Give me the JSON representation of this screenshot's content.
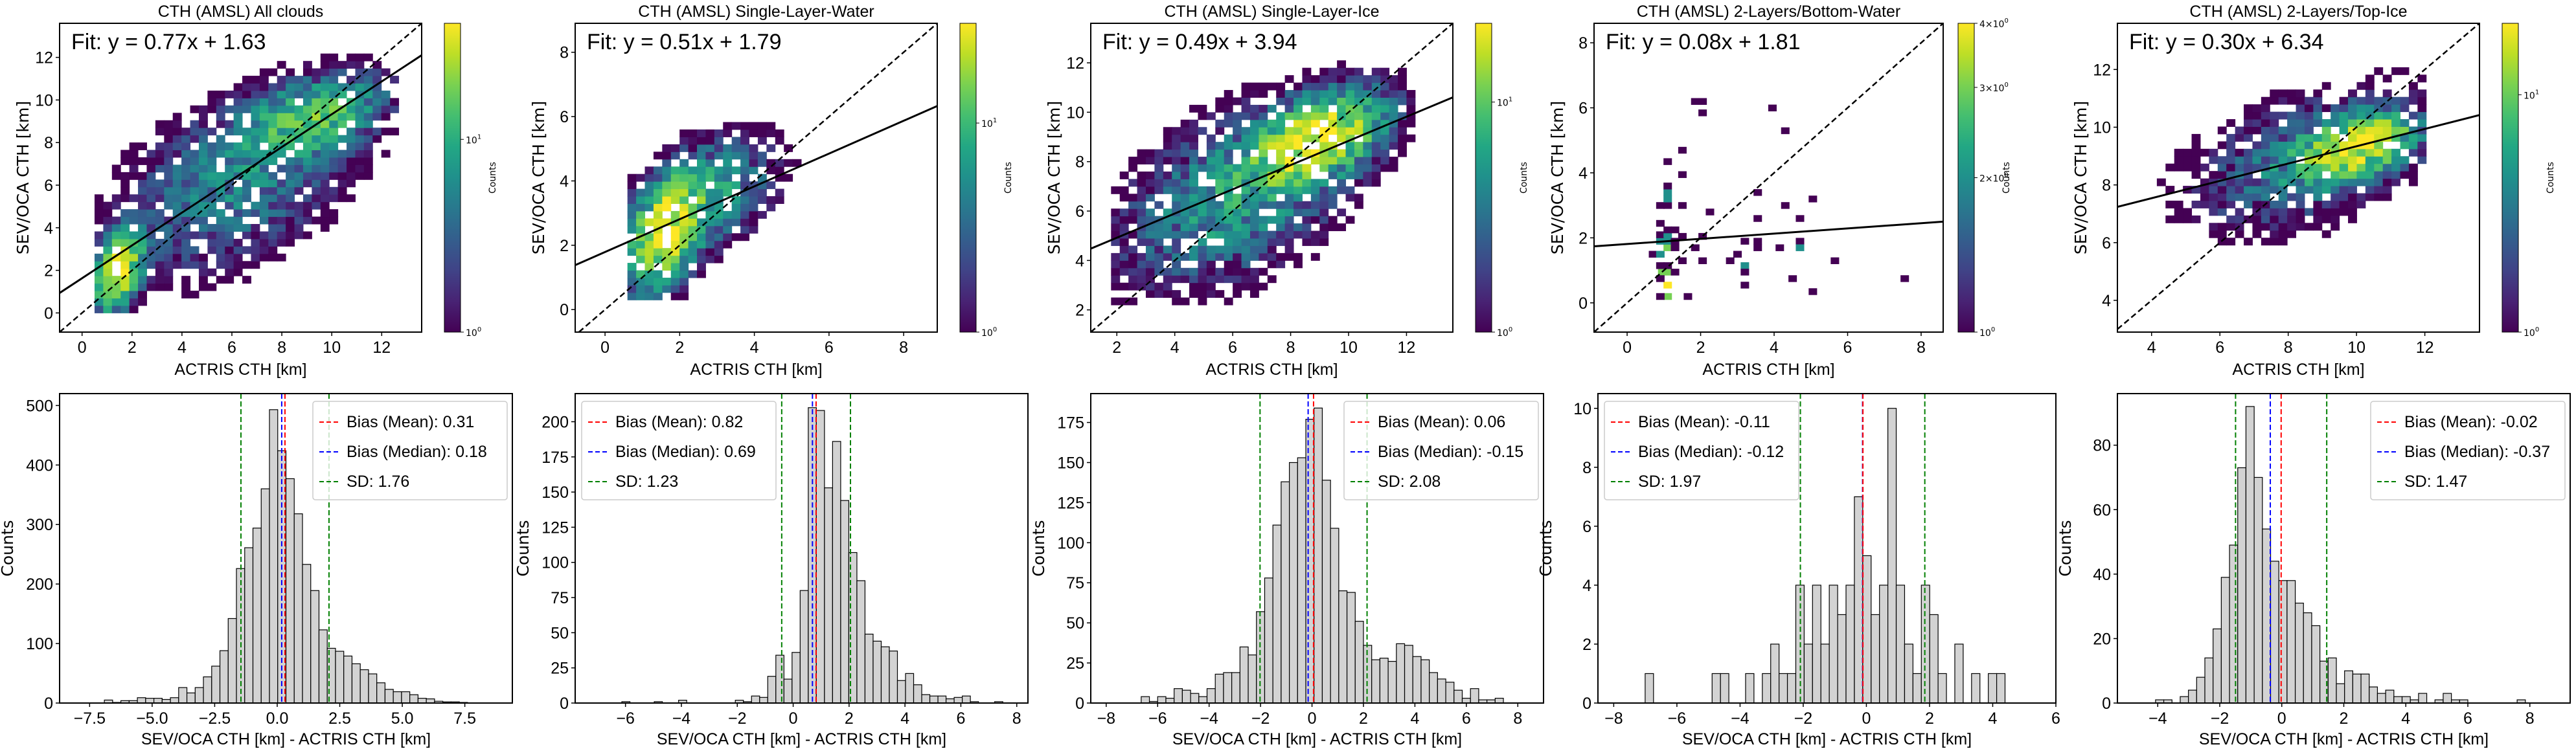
{
  "figure": {
    "scatter_xlabel": "ACTRIS CTH [km]",
    "scatter_ylabel": "SEV/OCA CTH [km]",
    "hist_xlabel": "SEV/OCA CTH [km] - ACTRIS CTH [km]",
    "hist_ylabel": "Counts",
    "colorbar_label": "Counts",
    "legend_labels": {
      "mean": "Bias (Mean)",
      "median": "Bias (Median)",
      "sd": "SD"
    },
    "colors": {
      "mean": "#ff0000",
      "median": "#0000ff",
      "sd": "#008000",
      "bar_fill": "#d3d3d3",
      "bar_edge": "#000000",
      "fit_line": "#000000",
      "one_to_one": "#000000"
    }
  },
  "chart_data": [
    {
      "type": "heatmap",
      "title": "CTH (AMSL) All clouds",
      "xlabel": "ACTRIS CTH [km]",
      "ylabel": "SEV/OCA CTH [km]",
      "xlim": [
        -0.9,
        13.6
      ],
      "ylim": [
        -0.9,
        13.6
      ],
      "xticks": [
        0,
        2,
        4,
        6,
        8,
        10,
        12
      ],
      "yticks": [
        0,
        2,
        4,
        6,
        8,
        10,
        12
      ],
      "fit": {
        "slope": 0.77,
        "intercept": 1.63,
        "label": "Fit: y = 0.77x + 1.63"
      },
      "one_to_one": true,
      "colorbar": {
        "scale": "log",
        "min": 1,
        "max": 40,
        "ticks": [
          "10^0",
          "10^1"
        ],
        "label": "Counts"
      },
      "density_clusters": [
        {
          "x": 1.3,
          "y": 1.8,
          "sx": 0.5,
          "sy": 1.0,
          "peak": 35
        },
        {
          "x": 9.0,
          "y": 9.0,
          "sx": 1.5,
          "sy": 1.0,
          "peak": 15
        },
        {
          "x": 6.0,
          "y": 6.0,
          "sx": 2.5,
          "sy": 2.2,
          "peak": 6
        }
      ],
      "x_extent": [
        0.5,
        12.5
      ],
      "y_extent": [
        0,
        12.7
      ]
    },
    {
      "type": "heatmap",
      "title": "CTH (AMSL) Single-Layer-Water",
      "xlabel": "ACTRIS CTH [km]",
      "ylabel": "SEV/OCA CTH [km]",
      "xlim": [
        -0.8,
        8.9
      ],
      "ylim": [
        -0.7,
        8.9
      ],
      "xticks": [
        0,
        2,
        4,
        6,
        8
      ],
      "yticks": [
        0,
        2,
        4,
        6,
        8
      ],
      "fit": {
        "slope": 0.51,
        "intercept": 1.79,
        "label": "Fit: y = 0.51x + 1.79"
      },
      "one_to_one": true,
      "colorbar": {
        "scale": "log",
        "min": 1,
        "max": 30,
        "ticks": [
          "10^0",
          "10^1"
        ],
        "label": "Counts"
      },
      "density_clusters": [
        {
          "x": 1.5,
          "y": 2.3,
          "sx": 0.5,
          "sy": 0.9,
          "peak": 28
        },
        {
          "x": 2.5,
          "y": 3.3,
          "sx": 1.0,
          "sy": 1.0,
          "peak": 8
        }
      ],
      "x_extent": [
        0.6,
        7.9
      ],
      "y_extent": [
        0.3,
        7.9
      ]
    },
    {
      "type": "heatmap",
      "title": "CTH (AMSL) Single-Layer-Ice",
      "xlabel": "ACTRIS CTH [km]",
      "ylabel": "SEV/OCA CTH [km]",
      "xlim": [
        1.1,
        13.6
      ],
      "ylim": [
        1.1,
        13.6
      ],
      "xticks": [
        2,
        4,
        6,
        8,
        10,
        12
      ],
      "yticks": [
        2,
        4,
        6,
        8,
        10,
        12
      ],
      "fit": {
        "slope": 0.49,
        "intercept": 3.94,
        "label": "Fit: y = 0.49x + 3.94"
      },
      "one_to_one": true,
      "colorbar": {
        "scale": "log",
        "min": 1,
        "max": 22,
        "ticks": [
          "10^0",
          "10^1"
        ],
        "label": "Counts"
      },
      "density_clusters": [
        {
          "x": 8.8,
          "y": 8.8,
          "sx": 1.2,
          "sy": 1.0,
          "peak": 20
        },
        {
          "x": 6.0,
          "y": 6.5,
          "sx": 2.2,
          "sy": 2.0,
          "peak": 6
        }
      ],
      "x_extent": [
        1.8,
        12.3
      ],
      "y_extent": [
        2.2,
        12.7
      ]
    },
    {
      "type": "heatmap",
      "title": "CTH (AMSL) 2-Layers/Bottom-Water",
      "xlabel": "ACTRIS CTH [km]",
      "ylabel": "SEV/OCA CTH [km]",
      "xlim": [
        -0.9,
        8.6
      ],
      "ylim": [
        -0.9,
        8.6
      ],
      "xticks": [
        0,
        2,
        4,
        6,
        8
      ],
      "yticks": [
        0,
        2,
        4,
        6,
        8
      ],
      "fit": {
        "slope": 0.08,
        "intercept": 1.81,
        "label": "Fit: y = 0.08x + 1.81"
      },
      "one_to_one": true,
      "colorbar": {
        "scale": "log",
        "min": 1,
        "max": 4,
        "ticks": [
          "10^0",
          "2×10^0",
          "3×10^0",
          "4×10^0"
        ],
        "label": "Counts"
      },
      "points": [
        [
          1.1,
          0.55,
          4
        ],
        [
          1.1,
          0.2,
          3
        ],
        [
          0.9,
          0.2,
          1
        ],
        [
          1.65,
          0.2,
          1
        ],
        [
          0.95,
          0.95,
          3
        ],
        [
          1.15,
          0.95,
          3
        ],
        [
          1.3,
          0.95,
          1
        ],
        [
          0.9,
          0.75,
          1
        ],
        [
          0.9,
          1.15,
          1
        ],
        [
          1.1,
          1.15,
          1
        ],
        [
          0.7,
          1.5,
          1
        ],
        [
          0.9,
          1.5,
          2
        ],
        [
          1.1,
          1.7,
          3
        ],
        [
          1.3,
          1.7,
          1
        ],
        [
          0.9,
          1.9,
          2
        ],
        [
          1.1,
          1.9,
          2
        ],
        [
          1.3,
          1.9,
          1
        ],
        [
          0.9,
          2.1,
          1
        ],
        [
          1.1,
          2.1,
          2
        ],
        [
          1.1,
          2.25,
          1
        ],
        [
          1.3,
          2.25,
          1
        ],
        [
          1.5,
          2.05,
          1
        ],
        [
          0.9,
          2.45,
          1
        ],
        [
          0.9,
          3.0,
          1
        ],
        [
          1.1,
          3.0,
          1
        ],
        [
          1.5,
          3.0,
          1
        ],
        [
          1.1,
          3.2,
          2
        ],
        [
          1.1,
          3.4,
          2
        ],
        [
          1.1,
          3.6,
          1
        ],
        [
          1.5,
          3.95,
          1
        ],
        [
          1.1,
          4.35,
          1
        ],
        [
          1.5,
          4.7,
          1
        ],
        [
          1.85,
          6.2,
          1
        ],
        [
          2.05,
          6.2,
          1
        ],
        [
          2.05,
          5.85,
          1
        ],
        [
          3.95,
          6.0,
          1
        ],
        [
          4.3,
          5.3,
          1
        ],
        [
          1.85,
          1.7,
          1
        ],
        [
          2.05,
          2.05,
          1
        ],
        [
          2.25,
          2.8,
          1
        ],
        [
          2.05,
          1.3,
          1
        ],
        [
          1.5,
          1.3,
          1
        ],
        [
          2.8,
          1.3,
          1
        ],
        [
          3.0,
          1.5,
          1
        ],
        [
          3.2,
          1.9,
          1
        ],
        [
          3.2,
          1.15,
          2
        ],
        [
          3.2,
          0.95,
          1
        ],
        [
          3.2,
          0.55,
          1
        ],
        [
          3.55,
          1.9,
          1
        ],
        [
          3.55,
          1.7,
          1
        ],
        [
          3.55,
          2.6,
          1
        ],
        [
          3.55,
          3.4,
          1
        ],
        [
          4.15,
          1.7,
          1
        ],
        [
          4.3,
          3.0,
          1
        ],
        [
          4.5,
          0.75,
          1
        ],
        [
          4.7,
          1.9,
          1
        ],
        [
          4.7,
          1.7,
          2
        ],
        [
          4.7,
          2.6,
          1
        ],
        [
          5.05,
          3.2,
          1
        ],
        [
          5.05,
          0.35,
          1
        ],
        [
          5.65,
          1.3,
          1
        ],
        [
          7.55,
          0.75,
          1
        ]
      ]
    },
    {
      "type": "heatmap",
      "title": "CTH (AMSL) 2-Layers/Top-Ice",
      "xlabel": "ACTRIS CTH [km]",
      "ylabel": "SEV/OCA CTH [km]",
      "xlim": [
        3.0,
        13.6
      ],
      "ylim": [
        2.9,
        13.6
      ],
      "xticks": [
        4,
        6,
        8,
        10,
        12
      ],
      "yticks": [
        4,
        6,
        8,
        10,
        12
      ],
      "fit": {
        "slope": 0.3,
        "intercept": 6.34,
        "label": "Fit: y = 0.30x + 6.34"
      },
      "one_to_one": true,
      "colorbar": {
        "scale": "log",
        "min": 1,
        "max": 20,
        "ticks": [
          "10^0",
          "10^1"
        ],
        "label": "Counts"
      },
      "density_clusters": [
        {
          "x": 9.9,
          "y": 9.2,
          "sx": 0.9,
          "sy": 0.6,
          "peak": 18
        },
        {
          "x": 8.5,
          "y": 8.8,
          "sx": 2.0,
          "sy": 1.4,
          "peak": 4
        }
      ],
      "x_extent": [
        3.9,
        11.9
      ],
      "y_extent": [
        5.4,
        12.7
      ]
    },
    {
      "type": "bar",
      "subtype": "histogram",
      "xlabel": "SEV/OCA CTH [km] - ACTRIS CTH [km]",
      "ylabel": "Counts",
      "xlim": [
        -8.7,
        9.4
      ],
      "ylim": [
        0,
        520
      ],
      "xticks": [
        -7.5,
        -5.0,
        -2.5,
        0.0,
        2.5,
        5.0,
        7.5
      ],
      "xtick_labels": [
        "−7.5",
        "−5.0",
        "−2.5",
        "0.0",
        "2.5",
        "5.0",
        "7.5"
      ],
      "yticks": [
        0,
        100,
        200,
        300,
        400,
        500
      ],
      "bin_start": -7.9,
      "bin_width": 0.33,
      "values": [
        0,
        0,
        0,
        5,
        1,
        4,
        4,
        9,
        8,
        8,
        6,
        9,
        26,
        17,
        26,
        44,
        62,
        88,
        142,
        226,
        261,
        294,
        360,
        493,
        424,
        377,
        318,
        233,
        189,
        123,
        92,
        87,
        79,
        66,
        56,
        49,
        34,
        23,
        19,
        19,
        14,
        8,
        7,
        3,
        2,
        2,
        1,
        0,
        0,
        0
      ],
      "bias_mean": 0.31,
      "bias_median": 0.18,
      "sd": 1.76,
      "sd_lines": [
        -1.45,
        2.07
      ],
      "legend": {
        "position": "top-right",
        "entries": [
          "Bias (Mean): 0.31",
          "Bias (Median): 0.18",
          "SD: 1.76"
        ]
      }
    },
    {
      "type": "bar",
      "subtype": "histogram",
      "xlabel": "SEV/OCA CTH [km] - ACTRIS CTH [km]",
      "ylabel": "Counts",
      "xlim": [
        -7.8,
        8.4
      ],
      "ylim": [
        0,
        220
      ],
      "xticks": [
        -6,
        -4,
        -2,
        0,
        2,
        4,
        6,
        8
      ],
      "xtick_labels": [
        "−6",
        "−4",
        "−2",
        "0",
        "2",
        "4",
        "6",
        "8"
      ],
      "yticks": [
        0,
        25,
        50,
        75,
        100,
        125,
        150,
        175,
        200
      ],
      "bin_start": -7.0,
      "bin_width": 0.29,
      "values": [
        0,
        0,
        0,
        1,
        0,
        0,
        0,
        1,
        0,
        0,
        2,
        0,
        0,
        0,
        0,
        0,
        0,
        2,
        1,
        5,
        4,
        19,
        34,
        17,
        36,
        80,
        210,
        208,
        153,
        186,
        144,
        107,
        87,
        49,
        44,
        40,
        37,
        16,
        21,
        13,
        6,
        5,
        5,
        3,
        4,
        5,
        1,
        0,
        0,
        1,
        0,
        0,
        0
      ],
      "bias_mean": 0.82,
      "bias_median": 0.69,
      "sd": 1.23,
      "sd_lines": [
        -0.41,
        2.05
      ],
      "legend": {
        "position": "top-left",
        "entries": [
          "Bias (Mean): 0.82",
          "Bias (Median): 0.69",
          "SD: 1.23"
        ]
      }
    },
    {
      "type": "bar",
      "subtype": "histogram",
      "xlabel": "SEV/OCA CTH [km] - ACTRIS CTH [km]",
      "ylabel": "Counts",
      "xlim": [
        -8.6,
        9.0
      ],
      "ylim": [
        0,
        193
      ],
      "xticks": [
        -8,
        -6,
        -4,
        -2,
        0,
        2,
        4,
        6,
        8
      ],
      "xtick_labels": [
        "−8",
        "−6",
        "−4",
        "−2",
        "0",
        "2",
        "4",
        "6",
        "8"
      ],
      "yticks": [
        0,
        25,
        50,
        75,
        100,
        125,
        150,
        175
      ],
      "bin_start": -7.6,
      "bin_width": 0.32,
      "values": [
        0,
        0,
        0,
        4,
        1,
        4,
        3,
        9,
        8,
        6,
        4,
        9,
        18,
        19,
        19,
        35,
        30,
        57,
        78,
        111,
        138,
        150,
        153,
        177,
        184,
        139,
        109,
        70,
        69,
        51,
        36,
        27,
        28,
        26,
        37,
        36,
        29,
        27,
        19,
        15,
        13,
        8,
        3,
        9,
        2,
        2,
        3,
        0,
        0,
        0
      ],
      "bias_mean": 0.06,
      "bias_median": -0.15,
      "sd": 2.08,
      "sd_lines": [
        -2.02,
        2.14
      ],
      "legend": {
        "position": "top-right",
        "entries": [
          "Bias (Mean): 0.06",
          "Bias (Median): -0.15",
          "SD: 2.08"
        ]
      }
    },
    {
      "type": "bar",
      "subtype": "histogram",
      "xlabel": "SEV/OCA CTH [km] - ACTRIS CTH [km]",
      "ylabel": "Counts",
      "xlim": [
        -8.5,
        6.0
      ],
      "ylim": [
        0,
        10.5
      ],
      "xticks": [
        -8,
        -6,
        -4,
        -2,
        0,
        2,
        4,
        6
      ],
      "xtick_labels": [
        "−8",
        "−6",
        "−4",
        "−2",
        "0",
        "2",
        "4",
        "6"
      ],
      "yticks": [
        0,
        2,
        4,
        6,
        8,
        10
      ],
      "bin_start": -7.8,
      "bin_width": 0.265,
      "values": [
        0,
        0,
        0,
        1,
        0,
        0,
        0,
        0,
        0,
        0,
        0,
        1,
        1,
        0,
        0,
        1,
        0,
        1,
        2,
        1,
        1,
        4,
        2,
        4,
        2,
        4,
        3,
        4,
        7,
        5,
        3,
        4,
        10,
        4,
        2,
        1,
        4,
        3,
        1,
        0,
        2,
        0,
        1,
        0,
        1,
        1,
        0,
        0,
        0,
        0
      ],
      "bias_mean": -0.11,
      "bias_median": -0.12,
      "sd": 1.97,
      "sd_lines": [
        -2.09,
        1.85
      ],
      "legend": {
        "position": "top-left",
        "entries": [
          "Bias (Mean): -0.11",
          "Bias (Median): -0.12",
          "SD: 1.97"
        ]
      }
    },
    {
      "type": "bar",
      "subtype": "histogram",
      "xlabel": "SEV/OCA CTH [km] - ACTRIS CTH [km]",
      "ylabel": "Counts",
      "xlim": [
        -5.3,
        9.3
      ],
      "ylim": [
        0,
        96
      ],
      "xticks": [
        -4,
        -2,
        0,
        2,
        4,
        6,
        8
      ],
      "xtick_labels": [
        "−4",
        "−2",
        "0",
        "2",
        "4",
        "6",
        "8"
      ],
      "yticks": [
        0,
        20,
        40,
        60,
        80
      ],
      "bin_start": -4.6,
      "bin_width": 0.265,
      "values": [
        0,
        0,
        1,
        1,
        0,
        2,
        4,
        8,
        14,
        23,
        39,
        49,
        73,
        92,
        70,
        54,
        44,
        38,
        38,
        31,
        28,
        24,
        13,
        14,
        6,
        10,
        9,
        9,
        5,
        3,
        4,
        2,
        2,
        1,
        3,
        0,
        1,
        3,
        1,
        1,
        0,
        0,
        0,
        0,
        0,
        0,
        1,
        0,
        0,
        0
      ],
      "bias_mean": -0.02,
      "bias_median": -0.37,
      "sd": 1.47,
      "sd_lines": [
        -1.49,
        1.45
      ],
      "legend": {
        "position": "top-right",
        "entries": [
          "Bias (Mean): -0.02",
          "Bias (Median): -0.37",
          "SD: 1.47"
        ]
      }
    }
  ]
}
